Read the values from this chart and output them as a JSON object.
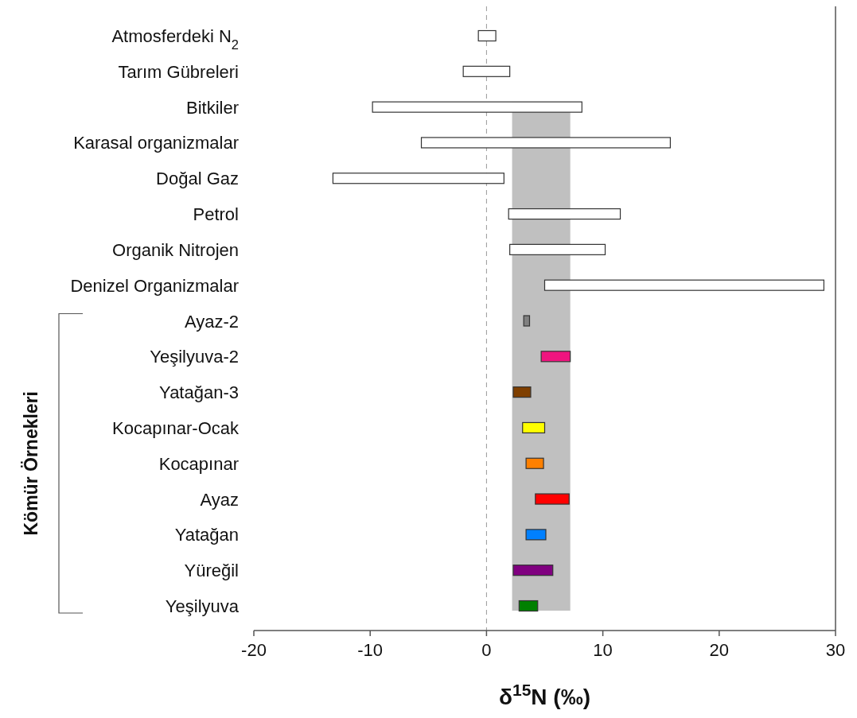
{
  "chart_data": {
    "type": "bar",
    "orientation": "horizontal",
    "xlabel": "δ$^{15}$N (‰)",
    "categories": [
      "Atmosferdeki N$_{2}$",
      "Tarım Gübreleri",
      "Bitkiler",
      "Karasal organizmalar",
      "Doğal Gaz",
      "Petrol",
      "Organik Nitrojen",
      "Denizel Organizmalar",
      "Ayaz-2",
      "Yeşilyuva-2",
      "Yatağan-3",
      "Kocapınar-Ocak",
      "Kocapınar",
      "Ayaz",
      "Yatağan",
      "Yüreğil",
      "Yeşilyuva"
    ],
    "base": [
      -0.7,
      -2,
      -9.8,
      -5.6,
      -13.2,
      1.9,
      2.0,
      5.0,
      3.2,
      4.7,
      2.3,
      3.1,
      3.4,
      4.2,
      3.4,
      2.3,
      2.8
    ],
    "values": [
      1.5,
      4,
      18,
      21.4,
      14.7,
      9.6,
      8.2,
      24.0,
      0.5,
      2.5,
      1.5,
      1.9,
      1.5,
      2.9,
      1.7,
      3.4,
      1.6
    ],
    "colors": [
      "#ffffff",
      "#ffffff",
      "#ffffff",
      "#ffffff",
      "#ffffff",
      "#ffffff",
      "#ffffff",
      "#ffffff",
      "#808080",
      "#f0147f",
      "#7f3f00",
      "#ffff00",
      "#ff8000",
      "#ff0000",
      "#0080ff",
      "#800080",
      "#008000"
    ],
    "xlim": [
      -20,
      30
    ],
    "xticks": [
      -20,
      -10,
      0,
      10,
      20,
      30
    ],
    "ref_lines": [
      {
        "axis": "x",
        "value": 0,
        "color": "#999999",
        "line_style": "dashed"
      }
    ],
    "bands": [
      {
        "axis": "x",
        "from": 2.2,
        "to": 7.2,
        "color": "#c0c0c0"
      }
    ],
    "annotations": [
      "Kömür Örnekleri"
    ]
  }
}
